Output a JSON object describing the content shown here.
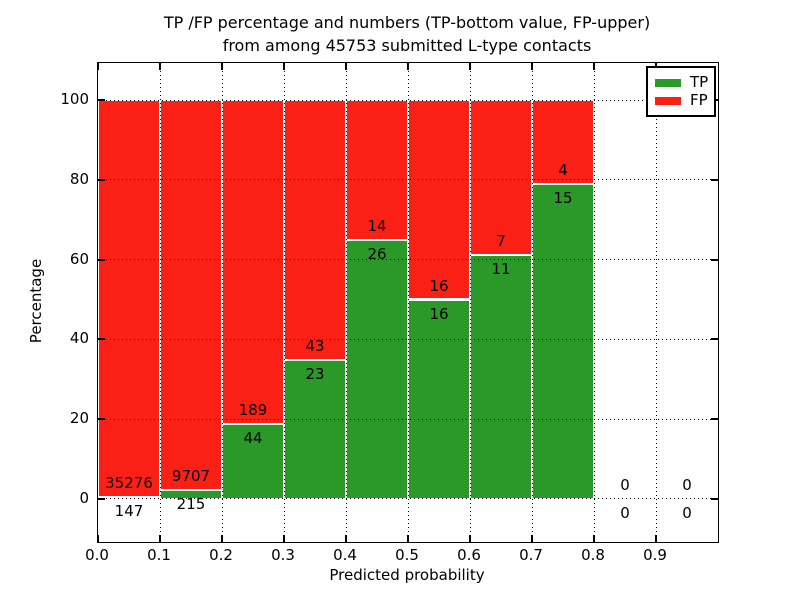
{
  "ui": {
    "title_line1": "TP /FP percentage and numbers (TP-bottom value, FP-upper)",
    "title_line2": "from among 45753 submitted L-type contacts"
  },
  "chart_data": {
    "type": "bar",
    "stacked": true,
    "normalized_to": 100,
    "title": "TP /FP percentage and numbers (TP-bottom value, FP-upper)\nfrom among 45753 submitted L-type contacts",
    "total_submitted_contacts": 45753,
    "xlabel": "Predicted probability",
    "ylabel": "Percentage",
    "xlim": [
      0.0,
      1.0
    ],
    "ylim": [
      -10.8,
      109.3
    ],
    "xticks": [
      "0.0",
      "0.1",
      "0.2",
      "0.3",
      "0.4",
      "0.5",
      "0.6",
      "0.7",
      "0.8",
      "0.9"
    ],
    "yticks": [
      0,
      20,
      40,
      60,
      80,
      100
    ],
    "grid": true,
    "grid_style": "dotted",
    "legend": {
      "position": "upper right",
      "entries": [
        {
          "label": "TP",
          "color": "#2a9928"
        },
        {
          "label": "FP",
          "color": "#fb2015"
        }
      ]
    },
    "bins": [
      {
        "range": [
          0.0,
          0.1
        ],
        "tp": 147,
        "fp": 35276
      },
      {
        "range": [
          0.1,
          0.2
        ],
        "tp": 215,
        "fp": 9707
      },
      {
        "range": [
          0.2,
          0.3
        ],
        "tp": 44,
        "fp": 189
      },
      {
        "range": [
          0.3,
          0.4
        ],
        "tp": 23,
        "fp": 43
      },
      {
        "range": [
          0.4,
          0.5
        ],
        "tp": 26,
        "fp": 14
      },
      {
        "range": [
          0.5,
          0.6
        ],
        "tp": 16,
        "fp": 16
      },
      {
        "range": [
          0.6,
          0.7
        ],
        "tp": 11,
        "fp": 7
      },
      {
        "range": [
          0.7,
          0.8
        ],
        "tp": 15,
        "fp": 4
      },
      {
        "range": [
          0.8,
          0.9
        ],
        "tp": 0,
        "fp": 0
      },
      {
        "range": [
          0.9,
          1.0
        ],
        "tp": 0,
        "fp": 0
      }
    ],
    "colors": {
      "tp": "#2a9928",
      "fp": "#fb2015",
      "bar_edge": "#ffffff",
      "grid": "#000000",
      "background": "#ffffff",
      "text": "#000000"
    }
  }
}
